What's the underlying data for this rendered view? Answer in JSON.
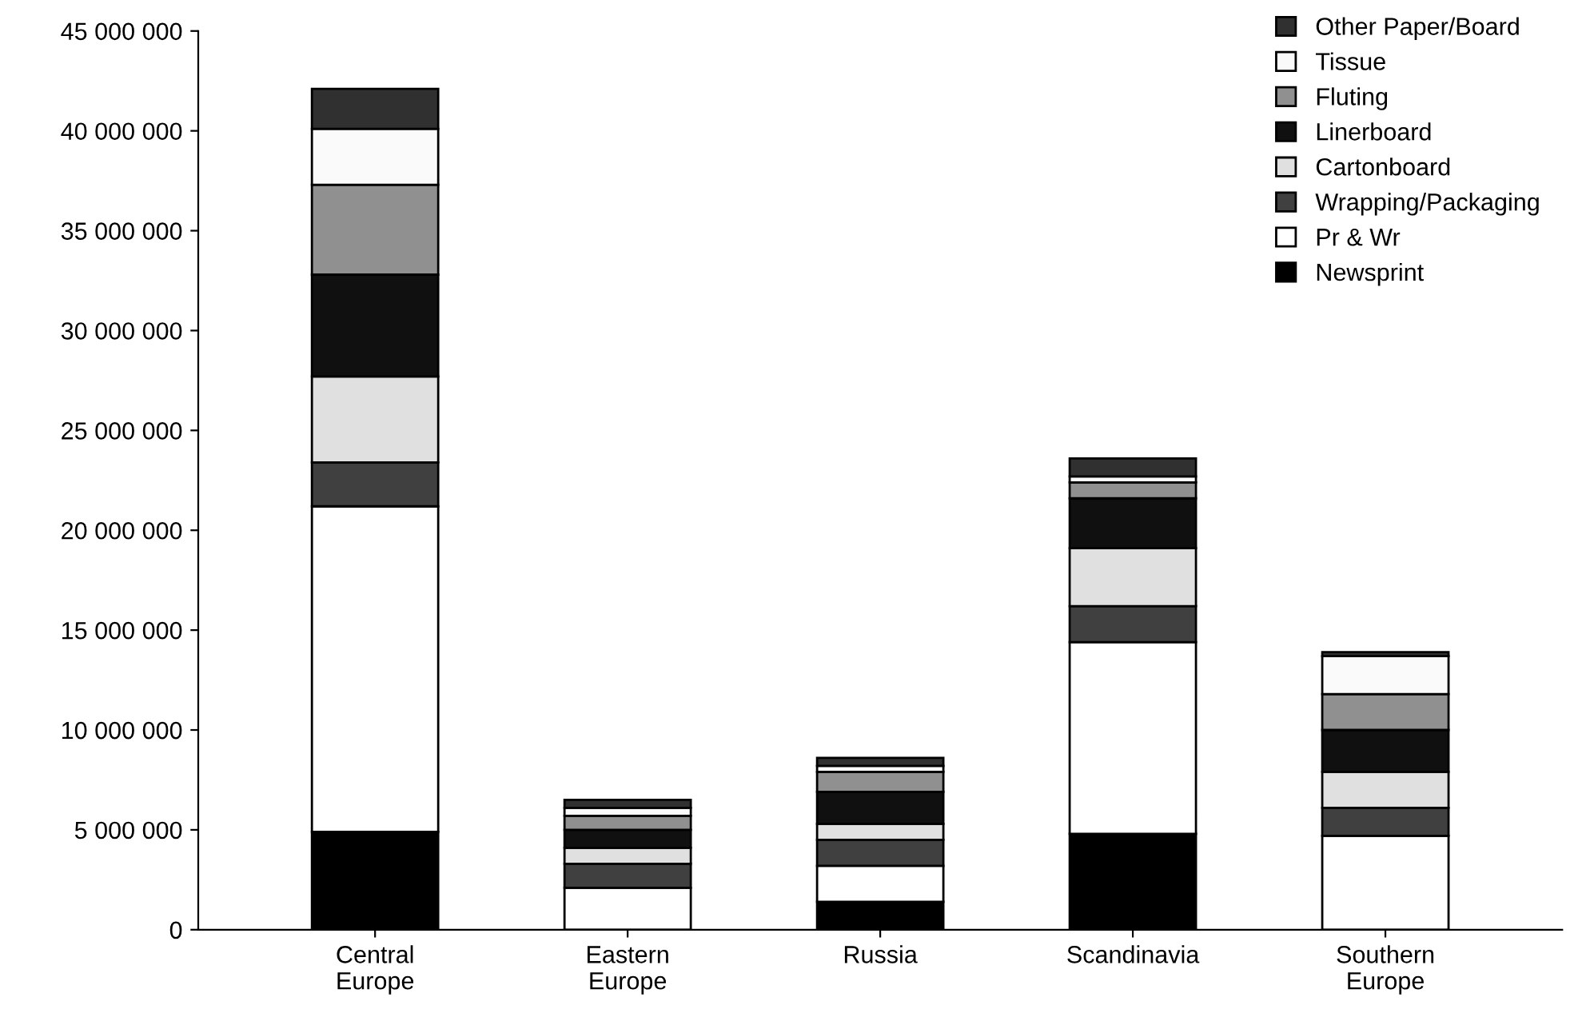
{
  "chart_data": {
    "type": "bar",
    "stacked": true,
    "categories": [
      "Central\nEurope",
      "Eastern\nEurope",
      "Russia",
      "Scandinavia",
      "Southern\nEurope"
    ],
    "series": [
      {
        "name": "Newsprint",
        "color": "#000000",
        "values": [
          4900000,
          null,
          1400000,
          4800000,
          null
        ]
      },
      {
        "name": "Pr & Wr",
        "color": "#ffffff",
        "values": [
          16300000,
          2100000,
          1800000,
          9600000,
          4700000
        ]
      },
      {
        "name": "Wrapping/Packaging",
        "color": "#404040",
        "values": [
          2200000,
          1200000,
          1300000,
          1800000,
          1400000
        ]
      },
      {
        "name": "Cartonboard",
        "color": "#e0e0e0",
        "values": [
          4300000,
          800000,
          800000,
          2900000,
          1800000
        ]
      },
      {
        "name": "Linerboard",
        "color": "#101010",
        "values": [
          5100000,
          900000,
          1600000,
          2500000,
          2100000
        ]
      },
      {
        "name": "Fluting",
        "color": "#909090",
        "values": [
          4500000,
          700000,
          1000000,
          800000,
          1800000
        ]
      },
      {
        "name": "Tissue",
        "color": "#fafafa",
        "values": [
          2800000,
          400000,
          300000,
          300000,
          1900000
        ]
      },
      {
        "name": "Other Paper/Board",
        "color": "#303030",
        "values": [
          2000000,
          400000,
          400000,
          900000,
          200000
        ]
      }
    ],
    "ylim": [
      0,
      45000000
    ],
    "yticks": [
      {
        "value": 0,
        "label": "0"
      },
      {
        "value": 5000000,
        "label": "5 000 000"
      },
      {
        "value": 10000000,
        "label": "10 000 000"
      },
      {
        "value": 15000000,
        "label": "15 000 000"
      },
      {
        "value": 20000000,
        "label": "20 000 000"
      },
      {
        "value": 25000000,
        "label": "25 000 000"
      },
      {
        "value": 30000000,
        "label": "30 000 000"
      },
      {
        "value": 35000000,
        "label": "35 000 000"
      },
      {
        "value": 40000000,
        "label": "40 000 000"
      },
      {
        "value": 45000000,
        "label": "45 000 000"
      }
    ],
    "grid": false,
    "legend": "top right"
  }
}
